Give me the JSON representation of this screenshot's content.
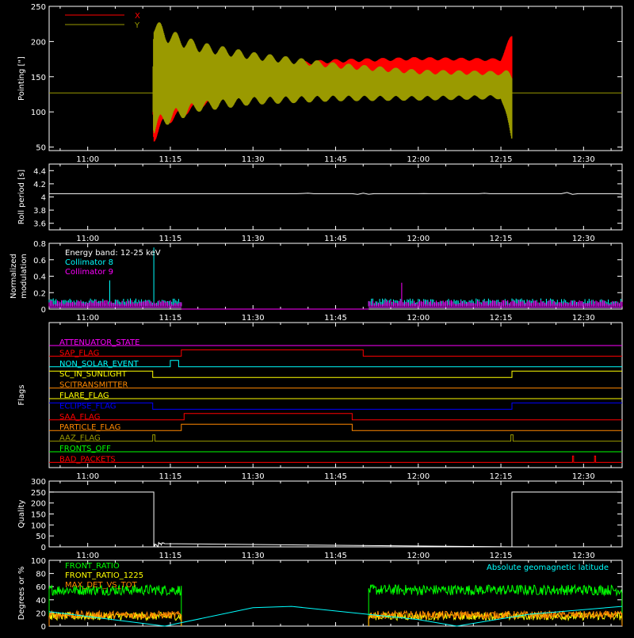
{
  "time_axis": {
    "ticks": [
      "11:00",
      "11:15",
      "11:30",
      "11:45",
      "12:00",
      "12:15",
      "12:30"
    ],
    "tick_minutes": [
      0,
      15,
      30,
      45,
      60,
      75,
      90
    ],
    "range_minutes": [
      -7,
      97
    ]
  },
  "chart_data": [
    {
      "id": "pointing",
      "type": "line",
      "ylabel": "Pointing [\"]",
      "ylim": [
        45,
        250
      ],
      "yticks": [
        50,
        100,
        150,
        200,
        250
      ],
      "legend": [
        {
          "label": "X",
          "color": "#ff0000"
        },
        {
          "label": "Y",
          "color": "#9a9a00"
        }
      ],
      "baseline": 127,
      "series": [
        {
          "name": "X",
          "color": "#ff0000",
          "envelope": [
            [
              11.8,
              127,
              127
            ],
            [
              12,
              57,
              185
            ],
            [
              14,
              80,
              170
            ],
            [
              20,
              105,
              162
            ],
            [
              30,
              125,
              168
            ],
            [
              45,
              140,
              175
            ],
            [
              60,
              148,
              178
            ],
            [
              75,
              150,
              176
            ],
            [
              77,
              140,
              212
            ]
          ]
        },
        {
          "name": "Y",
          "color": "#9a9a00",
          "envelope": [
            [
              11.8,
              127,
              127
            ],
            [
              12,
              65,
              235
            ],
            [
              14,
              80,
              220
            ],
            [
              20,
              100,
              200
            ],
            [
              30,
              110,
              185
            ],
            [
              45,
              115,
              170
            ],
            [
              60,
              116,
              160
            ],
            [
              75,
              118,
              158
            ],
            [
              77,
              58,
              160
            ]
          ]
        }
      ]
    },
    {
      "id": "roll-period",
      "type": "line",
      "ylabel": "Roll period [s]",
      "ylim": [
        3.5,
        4.5
      ],
      "yticks": [
        3.6,
        3.8,
        4.0,
        4.2,
        4.4
      ],
      "series": [
        {
          "name": "",
          "color": "#ffffff",
          "value": 4.05
        }
      ]
    },
    {
      "id": "modulation",
      "type": "line",
      "ylabel": "Normalized modulation",
      "ylim": [
        0,
        0.8
      ],
      "yticks": [
        0.0,
        0.2,
        0.4,
        0.6,
        0.8
      ],
      "annotation": "Energy band: 12-25 keV",
      "series": [
        {
          "name": "Collimator 8",
          "color": "#00ffff",
          "segments": [
            [
              -7,
              17
            ],
            [
              51,
              97
            ]
          ],
          "level": 0.1,
          "spikes": [
            [
              4,
              0.35
            ],
            [
              12,
              0.75
            ]
          ]
        },
        {
          "name": "Collimator 9",
          "color": "#ff00ff",
          "segments": [
            [
              -7,
              17
            ],
            [
              51,
              97
            ]
          ],
          "level": 0.08,
          "spikes": [
            [
              57,
              0.32
            ]
          ]
        }
      ]
    },
    {
      "id": "flags",
      "type": "table",
      "ylabel": "Flags",
      "series": [
        {
          "name": "ATTENUATOR_STATE",
          "color": "#ff00ff",
          "on": []
        },
        {
          "name": "SAP_FLAG",
          "color": "#ff0000",
          "on": [
            [
              17,
              50
            ]
          ]
        },
        {
          "name": "NON_SOLAR_EVENT",
          "color": "#00ffff",
          "on": [
            [
              15,
              16.5
            ]
          ]
        },
        {
          "name": "SC_IN_SUNLIGHT",
          "color": "#ffff00",
          "on": [
            [
              -7,
              11.8
            ],
            [
              77,
              97
            ]
          ]
        },
        {
          "name": "SCITRANSMITTER",
          "color": "#ff8800",
          "on": []
        },
        {
          "name": "FLARE_FLAG",
          "color": "#ffff00",
          "on": []
        },
        {
          "name": "ECLIPSE_FLAG",
          "color": "#0000ff",
          "on": [
            [
              -7,
              11.8
            ],
            [
              77,
              97
            ]
          ]
        },
        {
          "name": "SAA_FLAG",
          "color": "#ff0000",
          "on": [
            [
              17.5,
              48
            ]
          ]
        },
        {
          "name": "PARTICLE_FLAG",
          "color": "#ff8800",
          "on": [
            [
              17,
              48
            ]
          ]
        },
        {
          "name": "AAZ_FLAG",
          "color": "#9a9a00",
          "on": [
            [
              11.8,
              12.2
            ],
            [
              76.8,
              77.2
            ]
          ]
        },
        {
          "name": "FRONTS_OFF",
          "color": "#00ff00",
          "on": []
        },
        {
          "name": "BAD_PACKETS",
          "color": "#ff0000",
          "on": [
            [
              88,
              88.2
            ],
            [
              92,
              92.2
            ]
          ]
        }
      ]
    },
    {
      "id": "quality",
      "type": "line",
      "ylabel": "Quality",
      "ylim": [
        0,
        300
      ],
      "yticks": [
        0,
        50,
        100,
        150,
        200,
        250,
        300
      ],
      "series": [
        {
          "name": "",
          "color": "#ffffff",
          "high": 250,
          "high_segments": [
            [
              -7,
              12
            ],
            [
              77,
              97
            ]
          ]
        }
      ]
    },
    {
      "id": "ratios",
      "type": "line",
      "ylabel": "Degrees or %",
      "ylim": [
        0,
        100
      ],
      "yticks": [
        0,
        20,
        40,
        60,
        80,
        100
      ],
      "series": [
        {
          "name": "FRONT_RATIO",
          "color": "#00ff00",
          "segments": [
            [
              -7,
              17
            ],
            [
              51,
              97
            ]
          ],
          "level": 55
        },
        {
          "name": "FRONT_RATIO_1225",
          "color": "#ffff00",
          "segments": [
            [
              -7,
              17
            ],
            [
              51,
              97
            ]
          ],
          "level": 15
        },
        {
          "name": "MAX_DET_VS_TOT",
          "color": "#ff8800",
          "segments": [
            [
              -7,
              17
            ],
            [
              51,
              97
            ]
          ],
          "level": 17
        },
        {
          "name": "Absolute geomagnetic latitude",
          "color": "#00ffff",
          "curve": [
            [
              -7,
              22
            ],
            [
              14,
              0
            ],
            [
              30,
              28
            ],
            [
              37,
              30
            ],
            [
              60,
              10
            ],
            [
              67,
              0
            ],
            [
              80,
              18
            ],
            [
              97,
              30
            ]
          ]
        }
      ]
    }
  ]
}
